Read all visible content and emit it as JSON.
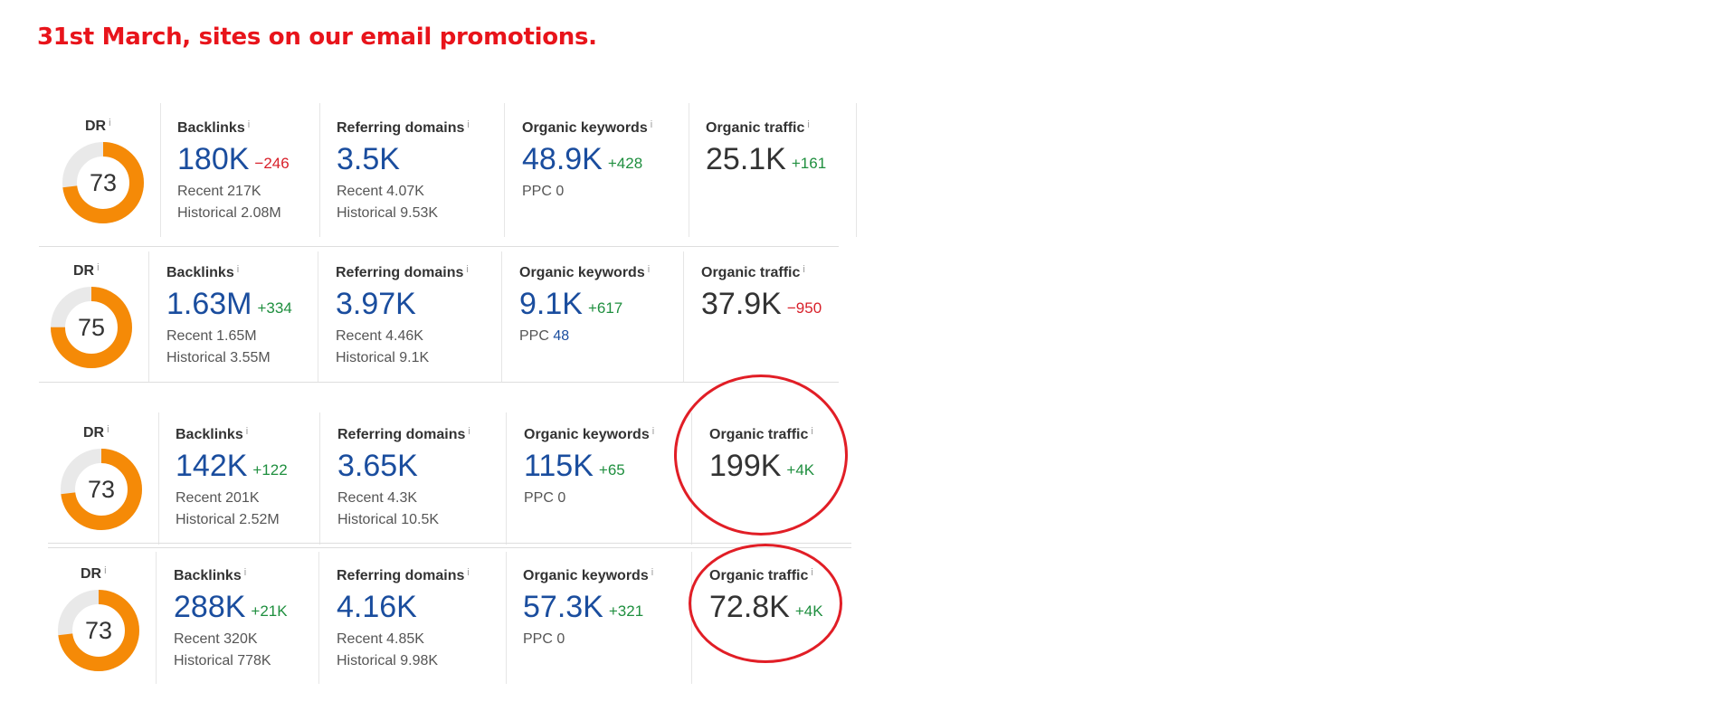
{
  "title": "31st March, sites on our email promotions.",
  "info_marker": "i",
  "colors": {
    "title": "#e8141b",
    "link_value": "#1a4d9e",
    "positive": "#1f8f3f",
    "negative": "#d8202a",
    "dr_ring": "#f58a07",
    "circle": "#e11e26"
  },
  "labels": {
    "dr": "DR",
    "backlinks": "Backlinks",
    "referring_domains": "Referring domains",
    "organic_keywords": "Organic keywords",
    "organic_traffic": "Organic traffic"
  },
  "rows": [
    {
      "dr": "73",
      "dr_fraction": 0.73,
      "backlinks": {
        "value": "180K",
        "delta": "−246",
        "recent": "Recent 217K",
        "historical": "Historical 2.08M"
      },
      "referring_domains": {
        "value": "3.5K",
        "recent": "Recent 4.07K",
        "historical": "Historical 9.53K"
      },
      "organic_keywords": {
        "value": "48.9K",
        "delta": "+428",
        "ppc_label": "PPC",
        "ppc_value": "0"
      },
      "organic_traffic": {
        "value": "25.1K",
        "delta": "+161"
      }
    },
    {
      "dr": "75",
      "dr_fraction": 0.75,
      "backlinks": {
        "value": "1.63M",
        "delta": "+334",
        "recent": "Recent 1.65M",
        "historical": "Historical 3.55M"
      },
      "referring_domains": {
        "value": "3.97K",
        "recent": "Recent 4.46K",
        "historical": "Historical 9.1K"
      },
      "organic_keywords": {
        "value": "9.1K",
        "delta": "+617",
        "ppc_label": "PPC",
        "ppc_value": "48"
      },
      "organic_traffic": {
        "value": "37.9K",
        "delta": "−950"
      }
    },
    {
      "dr": "73",
      "dr_fraction": 0.73,
      "backlinks": {
        "value": "142K",
        "delta": "+122",
        "recent": "Recent 201K",
        "historical": "Historical 2.52M"
      },
      "referring_domains": {
        "value": "3.65K",
        "recent": "Recent 4.3K",
        "historical": "Historical 10.5K"
      },
      "organic_keywords": {
        "value": "115K",
        "delta": "+65",
        "ppc_label": "PPC",
        "ppc_value": "0"
      },
      "organic_traffic": {
        "value": "199K",
        "delta": "+4K"
      }
    },
    {
      "dr": "73",
      "dr_fraction": 0.73,
      "backlinks": {
        "value": "288K",
        "delta": "+21K",
        "recent": "Recent 320K",
        "historical": "Historical 778K"
      },
      "referring_domains": {
        "value": "4.16K",
        "recent": "Recent 4.85K",
        "historical": "Historical 9.98K"
      },
      "organic_keywords": {
        "value": "57.3K",
        "delta": "+321",
        "ppc_label": "PPC",
        "ppc_value": "0"
      },
      "organic_traffic": {
        "value": "72.8K",
        "delta": "+4K"
      }
    }
  ]
}
